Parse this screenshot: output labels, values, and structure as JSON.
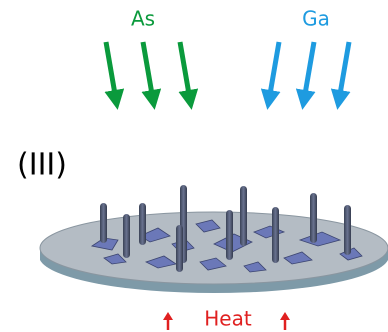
{
  "labels": {
    "as": "As",
    "ga": "Ga",
    "stage": "(III)",
    "heat": "Heat"
  }
}
